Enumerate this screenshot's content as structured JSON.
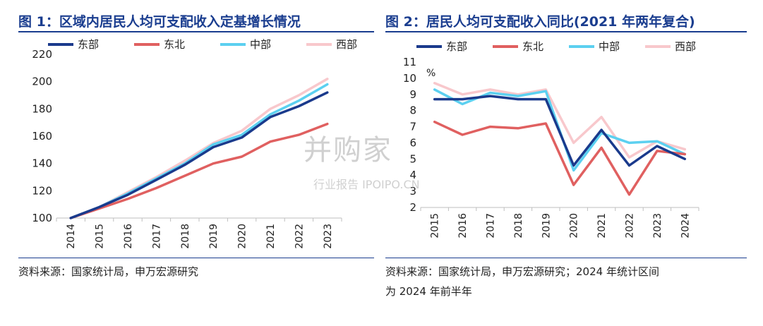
{
  "figures": [
    {
      "title": "图 1：区域内居民人均可支配收入定基增长情况",
      "source": "资料来源：国家统计局，申万宏源研究",
      "source2": ""
    },
    {
      "title": "图 2：居民人均可支配收入同比(2021 年两年复合)",
      "source": "资料来源：国家统计局，申万宏源研究；2024 年统计区间",
      "source2": "为 2024 年前半年"
    }
  ],
  "watermark": {
    "cn": "并购家",
    "en": "行业报告 IPOIPO.CN"
  },
  "colors": {
    "dongbu": "#1a3a8c",
    "dongbei": "#e06060",
    "zhongbu": "#5cd0f0",
    "xibu": "#f8c8cc",
    "title": "#1a3d8f"
  },
  "chart_data": [
    {
      "type": "line",
      "title": "图 1：区域内居民人均可支配收入定基增长情况",
      "x": [
        "2014",
        "2015",
        "2016",
        "2017",
        "2018",
        "2019",
        "2020",
        "2021",
        "2022",
        "2023"
      ],
      "ylim": [
        100,
        220
      ],
      "yticks": [
        100,
        120,
        140,
        160,
        180,
        200,
        220
      ],
      "ylabel": "",
      "legend_position": "top",
      "series": [
        {
          "name": "东部",
          "values": [
            100,
            108,
            117,
            128,
            139,
            152,
            159,
            174,
            182,
            192
          ]
        },
        {
          "name": "东北",
          "values": [
            100,
            107,
            114,
            122,
            131,
            140,
            145,
            156,
            161,
            169
          ]
        },
        {
          "name": "中部",
          "values": [
            100,
            108,
            118,
            129,
            140,
            154,
            161,
            176,
            186,
            198
          ]
        },
        {
          "name": "西部",
          "values": [
            100,
            108,
            119,
            130,
            142,
            155,
            164,
            180,
            190,
            202
          ]
        }
      ]
    },
    {
      "type": "line",
      "title": "图 2：居民人均可支配收入同比(2021 年两年复合)",
      "x": [
        "2015",
        "2016",
        "2017",
        "2018",
        "2019",
        "2020",
        "2021",
        "2022",
        "2023",
        "2024"
      ],
      "ylim": [
        2,
        11
      ],
      "yticks": [
        2,
        3,
        4,
        5,
        6,
        7,
        8,
        9,
        10,
        11
      ],
      "ylabel": "%",
      "legend_position": "top",
      "series": [
        {
          "name": "东部",
          "values": [
            8.7,
            8.7,
            8.9,
            8.7,
            8.7,
            4.6,
            6.8,
            4.6,
            5.8,
            5.0
          ]
        },
        {
          "name": "东北",
          "values": [
            7.3,
            6.5,
            7.0,
            6.9,
            7.2,
            3.4,
            5.7,
            2.8,
            5.5,
            5.3
          ]
        },
        {
          "name": "中部",
          "values": [
            9.3,
            8.4,
            9.1,
            8.9,
            9.2,
            4.3,
            6.6,
            6.0,
            6.1,
            5.3
          ]
        },
        {
          "name": "西部",
          "values": [
            9.7,
            9.0,
            9.3,
            9.0,
            9.3,
            6.0,
            7.6,
            5.1,
            6.1,
            5.6
          ]
        }
      ]
    }
  ]
}
